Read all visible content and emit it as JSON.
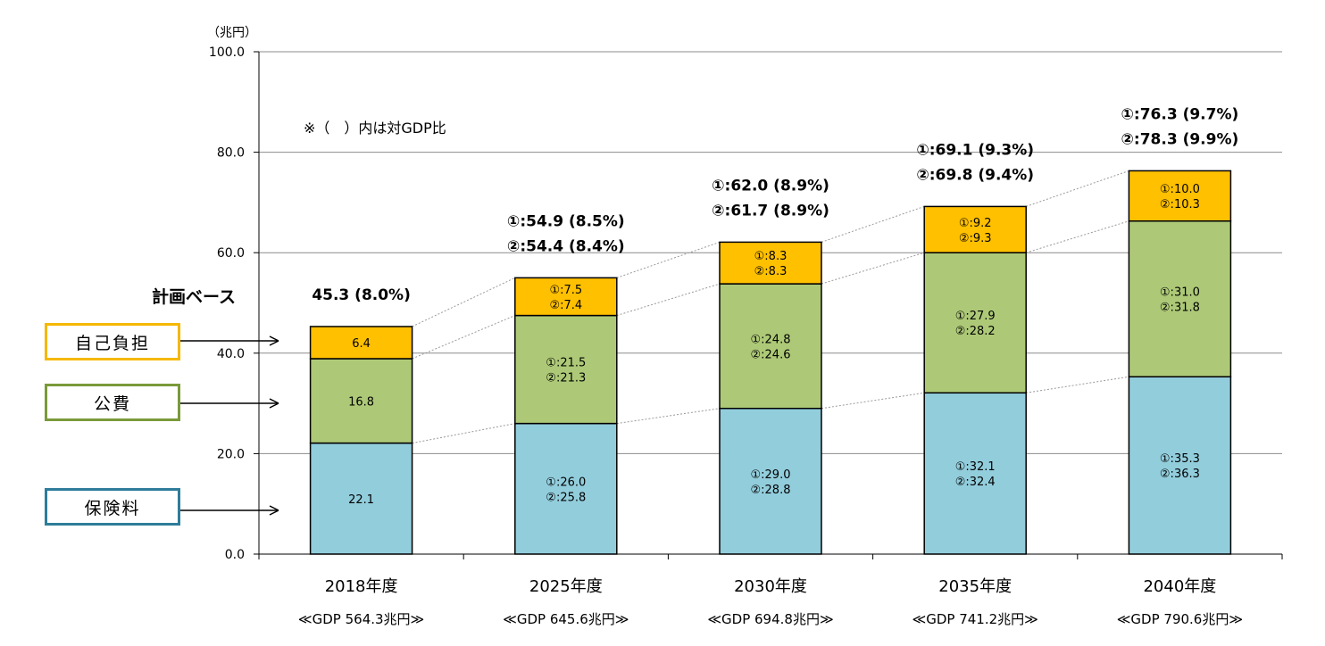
{
  "chart_data": {
    "type": "bar",
    "stacked": true,
    "unit": "（兆円）",
    "note": "※（　）内は対GDP比",
    "ylim": [
      0,
      100
    ],
    "y_ticks": [
      "0.0",
      "20.0",
      "40.0",
      "60.0",
      "80.0",
      "100.0"
    ],
    "grid": true,
    "categories": [
      "2018年度",
      "2025年度",
      "2030年度",
      "2035年度",
      "2040年度"
    ],
    "gdp_labels": [
      "≪GDP 564.3兆円≫",
      "≪GDP 645.6兆円≫",
      "≪GDP 694.8兆円≫",
      "≪GDP 741.2兆円≫",
      "≪GDP 790.6兆円≫"
    ],
    "series": [
      {
        "name": "保険料",
        "color": "#92CDDC",
        "values": [
          22.1,
          26.0,
          29.0,
          32.1,
          35.3
        ],
        "labels": [
          [
            "22.1"
          ],
          [
            "①:26.0",
            "②:25.8"
          ],
          [
            "①:29.0",
            "②:28.8"
          ],
          [
            "①:32.1",
            "②:32.4"
          ],
          [
            "①:35.3",
            "②:36.3"
          ]
        ]
      },
      {
        "name": "公費",
        "color": "#ADC977",
        "values": [
          16.8,
          21.5,
          24.8,
          27.9,
          31.0
        ],
        "labels": [
          [
            "16.8"
          ],
          [
            "①:21.5",
            "②:21.3"
          ],
          [
            "①:24.8",
            "②:24.6"
          ],
          [
            "①:27.9",
            "②:28.2"
          ],
          [
            "①:31.0",
            "②:31.8"
          ]
        ]
      },
      {
        "name": "自己負担",
        "color": "#FFC000",
        "values": [
          6.4,
          7.5,
          8.3,
          9.2,
          10.0
        ],
        "labels": [
          [
            "6.4"
          ],
          [
            "①:7.5",
            "②:7.4"
          ],
          [
            "①:8.3",
            "②:8.3"
          ],
          [
            "①:9.2",
            "②:9.3"
          ],
          [
            "①:10.0",
            "②:10.3"
          ]
        ]
      }
    ],
    "totals": [
      [
        "45.3 (8.0%)"
      ],
      [
        "①:54.9 (8.5%)",
        "②:54.4 (8.4%)"
      ],
      [
        "①:62.0 (8.9%)",
        "②:61.7 (8.9%)"
      ],
      [
        "①:69.1 (9.3%)",
        "②:69.8 (9.4%)"
      ],
      [
        "①:76.3 (9.7%)",
        "②:78.3 (9.9%)"
      ]
    ]
  },
  "legend": {
    "plan_base": "計画ベース",
    "self_pay": "自己負担",
    "public": "公費",
    "insurance": "保険料"
  }
}
